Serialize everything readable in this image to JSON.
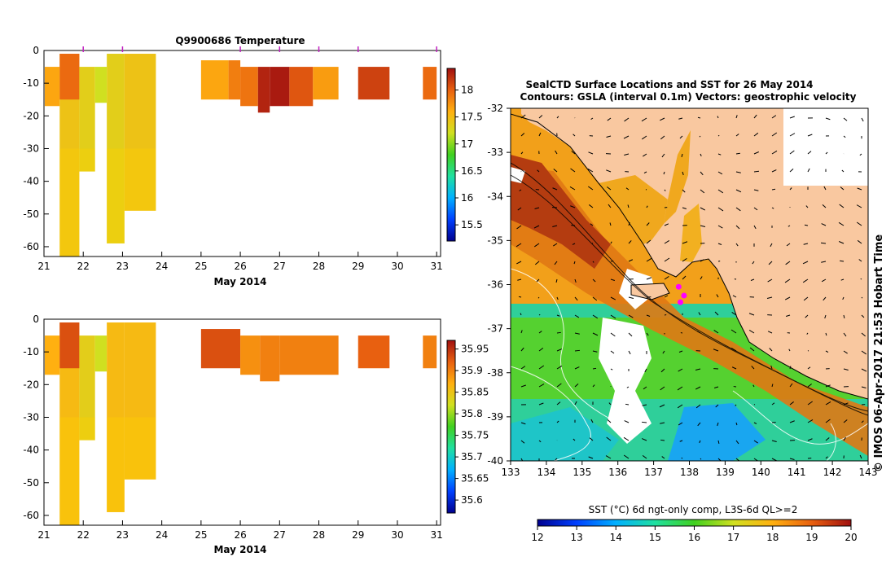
{
  "chart_data": [
    {
      "type": "heatmap",
      "title": "Q9900686  Temperature",
      "xlabel": "May 2014",
      "x_ticks": [
        "21",
        "22",
        "23",
        "24",
        "25",
        "26",
        "27",
        "28",
        "29",
        "30",
        "31"
      ],
      "y_ticks": [
        "0",
        "-10",
        "-20",
        "-30",
        "-40",
        "-50",
        "-60"
      ],
      "xlim": [
        21,
        31.1
      ],
      "ylim": [
        -63,
        0
      ],
      "colorbar": {
        "ticks": [
          "15.5",
          "16",
          "16.5",
          "17",
          "17.5",
          "18"
        ],
        "range": [
          15.2,
          18.4
        ]
      },
      "profile_markers_day": [
        22,
        23,
        26,
        27,
        28,
        29,
        31
      ],
      "cells": [
        {
          "x0": 21.02,
          "x1": 21.4,
          "y0": -5,
          "y1": -17,
          "v": 17.65
        },
        {
          "x0": 21.4,
          "x1": 21.9,
          "y0": -1,
          "y1": -63,
          "v": 17.45
        },
        {
          "x0": 21.4,
          "x1": 21.9,
          "y0": -1,
          "y1": -15,
          "v": 17.95
        },
        {
          "x0": 21.9,
          "x1": 22.3,
          "y0": -5,
          "y1": -37,
          "v": 17.35
        },
        {
          "x0": 22.3,
          "x1": 22.6,
          "y0": -5,
          "y1": -16,
          "v": 17.2
        },
        {
          "x0": 22.6,
          "x1": 23.05,
          "y0": -1,
          "y1": -59,
          "v": 17.35
        },
        {
          "x0": 23.05,
          "x1": 23.85,
          "y0": -1,
          "y1": -49,
          "v": 17.45
        },
        {
          "x0": 25.0,
          "x1": 25.7,
          "y0": -3,
          "y1": -15,
          "v": 17.65
        },
        {
          "x0": 25.7,
          "x1": 26.0,
          "y0": -3,
          "y1": -15,
          "v": 17.85
        },
        {
          "x0": 26.0,
          "x1": 26.45,
          "y0": -5,
          "y1": -17,
          "v": 17.9
        },
        {
          "x0": 26.45,
          "x1": 26.75,
          "y0": -5,
          "y1": -19,
          "v": 18.3
        },
        {
          "x0": 26.75,
          "x1": 27.25,
          "y0": -5,
          "y1": -17,
          "v": 18.35
        },
        {
          "x0": 27.25,
          "x1": 27.85,
          "y0": -5,
          "y1": -17,
          "v": 18.05
        },
        {
          "x0": 27.85,
          "x1": 28.5,
          "y0": -5,
          "y1": -15,
          "v": 17.7
        },
        {
          "x0": 29.0,
          "x1": 29.8,
          "y0": -5,
          "y1": -15,
          "v": 18.15
        },
        {
          "x0": 30.65,
          "x1": 31.0,
          "y0": -5,
          "y1": -15,
          "v": 17.95
        }
      ]
    },
    {
      "type": "heatmap",
      "title": "",
      "xlabel": "May 2014",
      "x_ticks": [
        "21",
        "22",
        "23",
        "24",
        "25",
        "26",
        "27",
        "28",
        "29",
        "30",
        "31"
      ],
      "y_ticks": [
        "0",
        "-10",
        "-20",
        "-30",
        "-40",
        "-50",
        "-60"
      ],
      "xlim": [
        21,
        31.1
      ],
      "ylim": [
        -63,
        0
      ],
      "colorbar": {
        "ticks": [
          "35.6",
          "35.65",
          "35.7",
          "35.75",
          "35.8",
          "35.85",
          "35.9",
          "35.95"
        ],
        "range": [
          35.57,
          35.97
        ]
      },
      "cells": [
        {
          "x0": 21.02,
          "x1": 21.4,
          "y0": -5,
          "y1": -17,
          "v": 35.87
        },
        {
          "x0": 21.4,
          "x1": 21.9,
          "y0": -1,
          "y1": -63,
          "v": 35.86
        },
        {
          "x0": 21.4,
          "x1": 21.9,
          "y0": -1,
          "y1": -15,
          "v": 35.93
        },
        {
          "x0": 21.9,
          "x1": 22.3,
          "y0": -5,
          "y1": -37,
          "v": 35.84
        },
        {
          "x0": 22.3,
          "x1": 22.6,
          "y0": -5,
          "y1": -16,
          "v": 35.82
        },
        {
          "x0": 22.6,
          "x1": 23.05,
          "y0": -1,
          "y1": -59,
          "v": 35.86
        },
        {
          "x0": 23.05,
          "x1": 23.85,
          "y0": -1,
          "y1": -49,
          "v": 35.86
        },
        {
          "x0": 25.0,
          "x1": 26.0,
          "y0": -3,
          "y1": -15,
          "v": 35.93
        },
        {
          "x0": 26.0,
          "x1": 26.5,
          "y0": -5,
          "y1": -17,
          "v": 35.89
        },
        {
          "x0": 26.5,
          "x1": 27.0,
          "y0": -5,
          "y1": -19,
          "v": 35.9
        },
        {
          "x0": 27.0,
          "x1": 28.5,
          "y0": -5,
          "y1": -17,
          "v": 35.9
        },
        {
          "x0": 29.0,
          "x1": 29.8,
          "y0": -5,
          "y1": -15,
          "v": 35.92
        },
        {
          "x0": 30.65,
          "x1": 31.0,
          "y0": -5,
          "y1": -15,
          "v": 35.9
        }
      ]
    },
    {
      "type": "heatmap",
      "title": "SealCTD Surface Locations and SST for 26 May 2014",
      "subtitle": "Contours: GSLA (interval 0.1m) Vectors: geostrophic velocity",
      "x_ticks": [
        "133",
        "134",
        "135",
        "136",
        "137",
        "138",
        "139",
        "140",
        "141",
        "142",
        "143"
      ],
      "y_ticks": [
        "-32",
        "-33",
        "-34",
        "-35",
        "-36",
        "-37",
        "-38",
        "-39",
        "-40"
      ],
      "xlim": [
        133,
        143
      ],
      "ylim": [
        -40,
        -32
      ],
      "colorbar_label": "SST (°C) 6d ngt-only comp, L3S-6d QL>=2",
      "colorbar": {
        "ticks": [
          "12",
          "13",
          "14",
          "15",
          "16",
          "17",
          "18",
          "19",
          "20"
        ],
        "range": [
          12,
          20
        ]
      },
      "side_label": "© IMOS 06-Apr-2017 21:53 Hobart Time",
      "land_color": "#f9c8a0",
      "seal_locations": [
        [
          137.7,
          -36.05
        ],
        [
          137.85,
          -36.25
        ],
        [
          137.75,
          -36.4
        ]
      ]
    }
  ]
}
